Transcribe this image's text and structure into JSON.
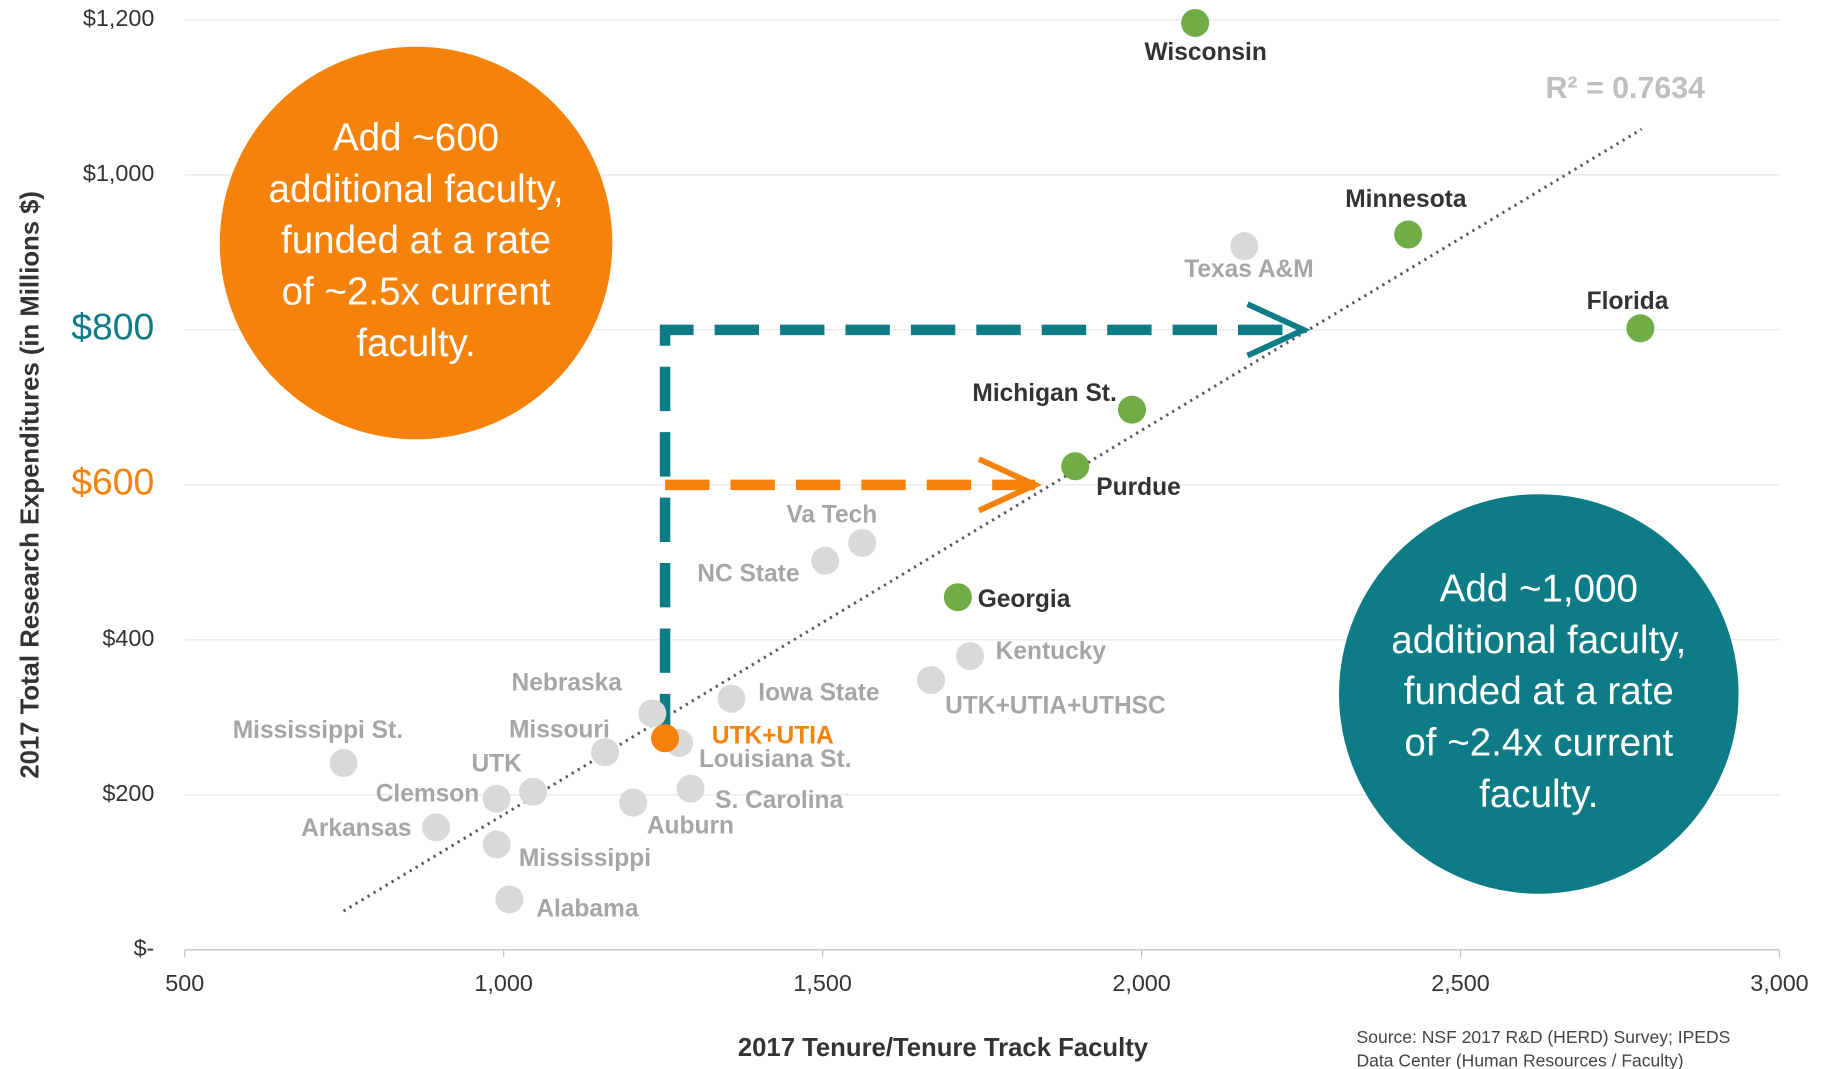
{
  "chart_data": {
    "type": "scatter",
    "x_label": "2017 Tenure/Tenure Track Faculty",
    "y_label": "2017 Total Research Expenditures (in Millions $)",
    "xlim": [
      500,
      3000
    ],
    "xticks": [
      500,
      {
        "value": 1000,
        "label": "1,000"
      },
      {
        "value": 1500,
        "label": "1,500"
      },
      {
        "value": 2000,
        "label": "2,000"
      },
      {
        "value": 2500,
        "label": "2,500"
      },
      {
        "value": 3000,
        "label": "3,000"
      }
    ],
    "ylim": [
      0,
      1200
    ],
    "yticks": [
      {
        "value": 0,
        "label": "$-"
      },
      {
        "value": 200,
        "label": "$200"
      },
      {
        "value": 400,
        "label": "$400"
      },
      {
        "value": 600,
        "label": "$600",
        "color": "#f5820a"
      },
      {
        "value": 800,
        "label": "$800",
        "color": "#0e7c86"
      },
      {
        "value": 1000,
        "label": "$1,000"
      },
      {
        "value": 1200,
        "label": "$1,200"
      }
    ],
    "grid": true,
    "points": [
      {
        "label": "Wisconsin",
        "x": 2084,
        "y": 1196,
        "color": "#70ad47"
      },
      {
        "label": "Minnesota",
        "x": 2418,
        "y": 923,
        "color": "#70ad47"
      },
      {
        "label": "Florida",
        "x": 2782,
        "y": 802,
        "color": "#70ad47"
      },
      {
        "label": "Texas A&M",
        "x": 2161,
        "y": 908,
        "color": "#d9d9d9"
      },
      {
        "label": "Michigan St.",
        "x": 1985,
        "y": 697,
        "color": "#70ad47"
      },
      {
        "label": "Purdue",
        "x": 1896,
        "y": 624,
        "color": "#70ad47"
      },
      {
        "label": "Georgia",
        "x": 1712,
        "y": 455,
        "color": "#70ad47"
      },
      {
        "label": "Va Tech",
        "x": 1562,
        "y": 525,
        "color": "#d9d9d9"
      },
      {
        "label": "NC State",
        "x": 1504,
        "y": 502,
        "color": "#d9d9d9"
      },
      {
        "label": "Kentucky",
        "x": 1731,
        "y": 379,
        "color": "#d9d9d9"
      },
      {
        "label": "UTK+UTIA+UTHSC",
        "x": 1670,
        "y": 348,
        "color": "#d9d9d9"
      },
      {
        "label": "Iowa State",
        "x": 1357,
        "y": 324,
        "color": "#d9d9d9"
      },
      {
        "label": "Nebraska",
        "x": 1233,
        "y": 305,
        "color": "#d9d9d9"
      },
      {
        "label": "Louisiana St.",
        "x": 1275,
        "y": 267,
        "color": "#d9d9d9"
      },
      {
        "label": "UTK+UTIA",
        "x": 1253,
        "y": 273,
        "color": "#f5820a"
      },
      {
        "label": "Missouri",
        "x": 1159,
        "y": 255,
        "color": "#d9d9d9"
      },
      {
        "label": "S. Carolina",
        "x": 1293,
        "y": 208,
        "color": "#d9d9d9"
      },
      {
        "label": "Auburn",
        "x": 1203,
        "y": 190,
        "color": "#d9d9d9"
      },
      {
        "label": "Clemson",
        "x": 1046,
        "y": 204,
        "color": "#d9d9d9"
      },
      {
        "label": "UTK",
        "x": 989,
        "y": 195,
        "color": "#d9d9d9"
      },
      {
        "label": "Mississippi St.",
        "x": 749,
        "y": 241,
        "color": "#d9d9d9"
      },
      {
        "label": "Arkansas",
        "x": 894,
        "y": 158,
        "color": "#d9d9d9"
      },
      {
        "label": "Mississippi",
        "x": 989,
        "y": 136,
        "color": "#d9d9d9"
      },
      {
        "label": "Alabama",
        "x": 1009,
        "y": 65,
        "color": "#d9d9d9"
      }
    ],
    "trendline": {
      "x": [
        749,
        2784
      ],
      "y": [
        50,
        1059
      ],
      "label": "R² = 0.7634"
    },
    "arrows": [
      {
        "color": "#0e7c86",
        "x": [
          1253,
          1253,
          2254
        ],
        "y": [
          273,
          800,
          800
        ]
      },
      {
        "color": "#f5820a",
        "x": [
          1253,
          1833
        ],
        "y": [
          600,
          600
        ]
      }
    ],
    "callouts": [
      {
        "lines": [
          "Add ~600",
          "additional faculty,",
          "funded at a rate",
          "of ~2.5x current",
          "faculty."
        ],
        "color": "#f5820a"
      },
      {
        "lines": [
          "Add ~1,000",
          "additional faculty,",
          "funded at a rate",
          "of ~2.4x current",
          "faculty."
        ],
        "color": "#0e7c86"
      }
    ],
    "source": [
      "Source:  NSF 2017 R&D (HERD) Survey; IPEDS",
      "Data Center (Human Resources / Faculty)"
    ]
  }
}
